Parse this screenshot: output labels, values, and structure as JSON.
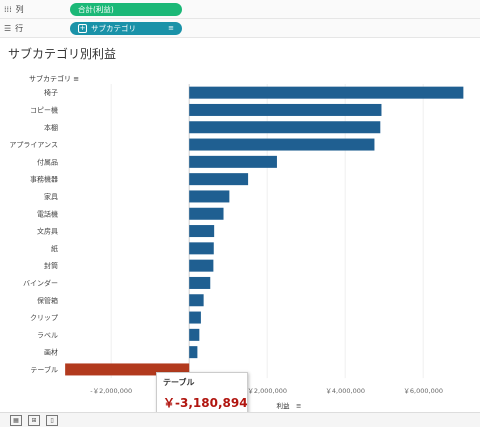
{
  "shelves": {
    "columns": {
      "label": "列",
      "pill": "合計(利益)"
    },
    "rows": {
      "label": "行",
      "pill": "サブカテゴリ"
    }
  },
  "sheet": {
    "title": "サブカテゴリ別利益",
    "dimension_header": "サブカテゴリ"
  },
  "chart_data": {
    "type": "bar",
    "orientation": "horizontal",
    "title": "サブカテゴリ別利益",
    "xlabel": "利益",
    "ylabel": "サブカテゴリ",
    "xlim": [
      -2800000,
      7200000
    ],
    "xticks": [
      -2000000,
      0,
      2000000,
      4000000,
      6000000
    ],
    "xtick_labels": [
      "-￥2,000,000",
      "￥0",
      "￥2,000,000",
      "￥4,000,000",
      "￥6,000,000"
    ],
    "categories": [
      "椅子",
      "コピー機",
      "本棚",
      "アプライアンス",
      "付属品",
      "事務機器",
      "家具",
      "電話機",
      "文房具",
      "紙",
      "封筒",
      "バインダー",
      "保管箱",
      "クリップ",
      "ラベル",
      "画材",
      "テーブル"
    ],
    "values": [
      7030000,
      4930000,
      4900000,
      4750000,
      2250000,
      1510000,
      1030000,
      880000,
      640000,
      630000,
      620000,
      540000,
      370000,
      300000,
      260000,
      210000,
      -3180894
    ],
    "colors": {
      "positive": "#1f5f91",
      "negative": "#b23a1e"
    },
    "grid": true
  },
  "tooltip": {
    "title": "テーブル",
    "value": "￥-3,180,894"
  },
  "bottom_bar": {
    "icons": [
      "sheet-icon",
      "new-dashboard-icon",
      "new-story-icon"
    ]
  }
}
